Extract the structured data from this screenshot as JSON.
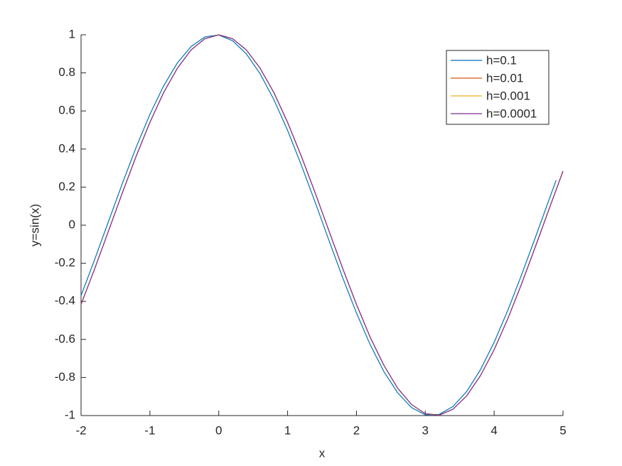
{
  "chart_data": {
    "type": "line",
    "xlabel": "x",
    "ylabel": "y=sin(x)",
    "xlim": [
      -2,
      5
    ],
    "xticks": [
      -2,
      -1,
      0,
      1,
      2,
      3,
      4,
      5
    ],
    "ylim": [
      -1,
      1
    ],
    "yticks": [
      -1,
      -0.8,
      -0.6,
      -0.4,
      -0.2,
      0,
      0.2,
      0.4,
      0.6,
      0.8,
      1
    ],
    "legend": "upper-right",
    "series": [
      {
        "name": "h=0.1",
        "color": "#0072BD",
        "x": [
          -2,
          -1.8,
          -1.6,
          -1.4,
          -1.2,
          -1,
          -0.8,
          -0.6,
          -0.4,
          -0.2,
          0,
          0.2,
          0.4,
          0.6,
          0.8,
          1,
          1.2,
          1.4,
          1.6,
          1.8,
          2,
          2.2,
          2.4,
          2.6,
          2.8,
          3,
          3.2,
          3.4,
          3.6,
          3.8,
          4,
          4.2,
          4.4,
          4.6,
          4.8,
          4.9
        ],
        "values": [
          -0.37,
          -0.178,
          0.021,
          0.219,
          0.409,
          0.582,
          0.732,
          0.853,
          0.939,
          0.989,
          0.999,
          0.969,
          0.9,
          0.796,
          0.66,
          0.498,
          0.315,
          0.121,
          -0.079,
          -0.276,
          -0.461,
          -0.628,
          -0.77,
          -0.881,
          -0.958,
          -0.996,
          -0.994,
          -0.953,
          -0.874,
          -0.76,
          -0.615,
          -0.446,
          -0.259,
          -0.063,
          0.137,
          0.236
        ]
      },
      {
        "name": "h=0.01",
        "color": "#D95319",
        "x": [
          -2,
          -1.8,
          -1.6,
          -1.4,
          -1.2,
          -1,
          -0.8,
          -0.6,
          -0.4,
          -0.2,
          0,
          0.2,
          0.4,
          0.6,
          0.8,
          1,
          1.2,
          1.4,
          1.6,
          1.8,
          2,
          2.2,
          2.4,
          2.6,
          2.8,
          3,
          3.2,
          3.4,
          3.6,
          3.8,
          4,
          4.2,
          4.4,
          4.6,
          4.8,
          5
        ],
        "values": [
          -0.416,
          -0.227,
          -0.029,
          0.17,
          0.362,
          0.54,
          0.697,
          0.825,
          0.921,
          0.98,
          1,
          0.98,
          0.921,
          0.825,
          0.697,
          0.54,
          0.362,
          0.17,
          -0.029,
          -0.227,
          -0.416,
          -0.589,
          -0.737,
          -0.857,
          -0.942,
          -0.99,
          -0.998,
          -0.967,
          -0.897,
          -0.791,
          -0.654,
          -0.49,
          -0.307,
          -0.112,
          0.087,
          0.284
        ]
      },
      {
        "name": "h=0.001",
        "color": "#EDB120",
        "x": [
          -2,
          -1.8,
          -1.6,
          -1.4,
          -1.2,
          -1,
          -0.8,
          -0.6,
          -0.4,
          -0.2,
          0,
          0.2,
          0.4,
          0.6,
          0.8,
          1,
          1.2,
          1.4,
          1.6,
          1.8,
          2,
          2.2,
          2.4,
          2.6,
          2.8,
          3,
          3.2,
          3.4,
          3.6,
          3.8,
          4,
          4.2,
          4.4,
          4.6,
          4.8,
          5
        ],
        "values": [
          -0.416,
          -0.227,
          -0.029,
          0.17,
          0.362,
          0.54,
          0.697,
          0.825,
          0.921,
          0.98,
          1,
          0.98,
          0.921,
          0.825,
          0.697,
          0.54,
          0.362,
          0.17,
          -0.029,
          -0.227,
          -0.416,
          -0.589,
          -0.737,
          -0.857,
          -0.942,
          -0.99,
          -0.998,
          -0.967,
          -0.897,
          -0.791,
          -0.654,
          -0.49,
          -0.307,
          -0.112,
          0.087,
          0.284
        ]
      },
      {
        "name": "h=0.0001",
        "color": "#7E2F8E",
        "x": [
          -2,
          -1.8,
          -1.6,
          -1.4,
          -1.2,
          -1,
          -0.8,
          -0.6,
          -0.4,
          -0.2,
          0,
          0.2,
          0.4,
          0.6,
          0.8,
          1,
          1.2,
          1.4,
          1.6,
          1.8,
          2,
          2.2,
          2.4,
          2.6,
          2.8,
          3,
          3.2,
          3.4,
          3.6,
          3.8,
          4,
          4.2,
          4.4,
          4.6,
          4.8,
          5
        ],
        "values": [
          -0.416,
          -0.227,
          -0.029,
          0.17,
          0.362,
          0.54,
          0.697,
          0.825,
          0.921,
          0.98,
          1,
          0.98,
          0.921,
          0.825,
          0.697,
          0.54,
          0.362,
          0.17,
          -0.029,
          -0.227,
          -0.416,
          -0.589,
          -0.737,
          -0.857,
          -0.942,
          -0.99,
          -0.998,
          -0.967,
          -0.897,
          -0.791,
          -0.654,
          -0.49,
          -0.307,
          -0.112,
          0.087,
          0.284
        ]
      }
    ]
  }
}
